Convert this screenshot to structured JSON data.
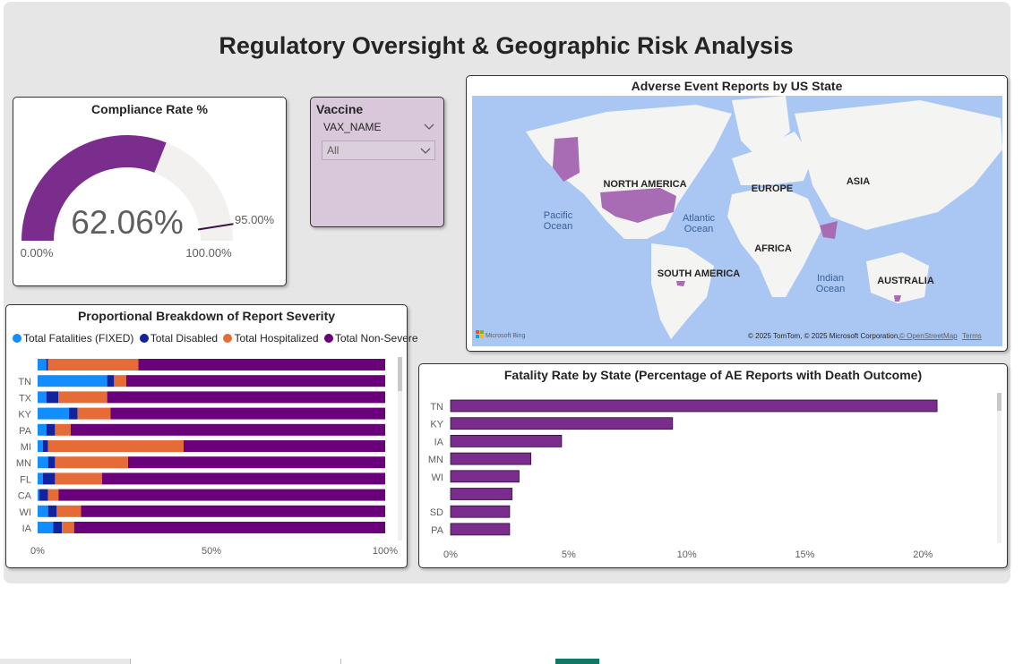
{
  "page": {
    "title": "Regulatory Oversight & Geographic Risk Analysis"
  },
  "gauge": {
    "title": "Compliance Rate %",
    "value": 62.06,
    "value_label": "62.06%",
    "min_label": "0.00%",
    "max_label": "100.00%",
    "target": 95.0,
    "target_label": "95.00%",
    "fill_color": "#7b2d8e",
    "track_color": "#f2f1f0"
  },
  "slicer": {
    "title": "Vaccine",
    "field": "VAX_NAME",
    "selected": "All",
    "background": "#d8c8d9"
  },
  "map": {
    "title": "Adverse Event Reports by US State",
    "labels": {
      "north_america": "NORTH AMERICA",
      "south_america": "SOUTH AMERICA",
      "europe": "EUROPE",
      "asia": "ASIA",
      "africa": "AFRICA",
      "australia": "AUSTRALIA",
      "pacific": "Pacific",
      "pacific2": "Ocean",
      "atlantic": "Atlantic",
      "atlantic2": "Ocean",
      "indian": "Indian",
      "indian2": "Ocean"
    },
    "logo": "Microsoft Bing",
    "credits": "© 2025 TomTom, © 2025 Microsoft Corporation,",
    "osm_link": "© OpenStreetMap",
    "terms_link": "Terms",
    "ocean_color": "#a9c7f2",
    "land_color": "#f4f4f2",
    "highlight_color": "#a86cb5"
  },
  "chart_data": [
    {
      "type": "bar",
      "orientation": "horizontal",
      "stacked": "100%",
      "title": "Proportional Breakdown of Report Severity",
      "categories": [
        "",
        "TN",
        "TX",
        "KY",
        "PA",
        "MI",
        "MN",
        "FL",
        "CA",
        "WI",
        "IA"
      ],
      "series": [
        {
          "name": "Total Fatalities (FIXED)",
          "color": "#118dff",
          "values": [
            2.5,
            20,
            2.5,
            9,
            2.5,
            1.5,
            3,
            1.5,
            0.5,
            3,
            4.5
          ]
        },
        {
          "name": "Total Disabled",
          "color": "#12239e",
          "values": [
            0.5,
            2,
            3.5,
            2.5,
            2.5,
            1.5,
            2,
            3.5,
            2.5,
            2.5,
            2.5
          ]
        },
        {
          "name": "Total Hospitalized",
          "color": "#e66c37",
          "values": [
            26,
            3.5,
            14,
            9.5,
            4.5,
            39,
            21,
            13.5,
            3,
            7,
            3.5
          ]
        },
        {
          "name": "Total Non-Severe",
          "color": "#6b007b",
          "values": [
            71,
            74.5,
            80,
            79,
            90.5,
            58,
            74,
            81.5,
            94,
            87.5,
            89.5
          ]
        }
      ],
      "x_ticks": [
        "0%",
        "50%",
        "100%"
      ],
      "xlim": [
        0,
        100
      ]
    },
    {
      "type": "bar",
      "orientation": "horizontal",
      "title": "Fatality Rate by State (Percentage of AE Reports with Death Outcome)",
      "categories": [
        "TN",
        "KY",
        "IA",
        "MN",
        "WI",
        "",
        "SD",
        "PA"
      ],
      "values": [
        20.6,
        9.4,
        4.7,
        3.4,
        2.9,
        2.6,
        2.5,
        2.5
      ],
      "color": "#7b2d8e",
      "x_ticks": [
        "0%",
        "5%",
        "10%",
        "15%",
        "20%"
      ],
      "xlim": [
        0,
        22
      ]
    }
  ]
}
